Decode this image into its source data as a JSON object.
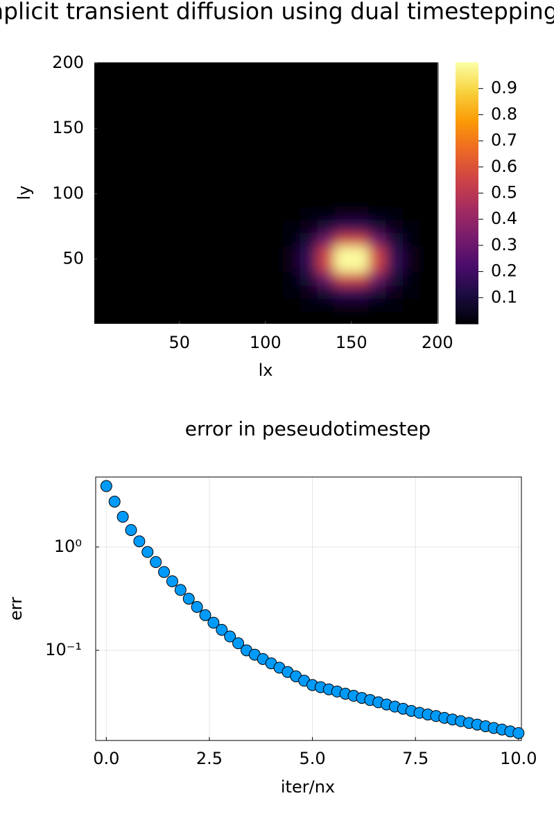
{
  "chart_data": [
    {
      "type": "heatmap",
      "title": "Implicit transient diffusion using dual timestepping",
      "xlabel": "lx",
      "ylabel": "ly",
      "x": [
        5,
        15,
        25,
        35,
        45,
        55,
        65,
        75,
        85,
        95,
        105,
        115,
        125,
        135,
        145,
        155,
        165,
        175,
        185,
        195
      ],
      "y": [
        5,
        15,
        25,
        35,
        45,
        55,
        65,
        75,
        85,
        95,
        105,
        115,
        125,
        135,
        145,
        155,
        165,
        175,
        185,
        195
      ],
      "z": [
        [
          0,
          0,
          0,
          0,
          0,
          0,
          0,
          0,
          0,
          0,
          0,
          0,
          0,
          0,
          0,
          0,
          0,
          0,
          0,
          0
        ],
        [
          0,
          0,
          0,
          0,
          0,
          0,
          0,
          0,
          0,
          0,
          0,
          0,
          0.005,
          0.016,
          0.029,
          0.029,
          0.016,
          0.005,
          0,
          0
        ],
        [
          0,
          0,
          0,
          0,
          0,
          0,
          0,
          0,
          0,
          0,
          0,
          0.005,
          0.028,
          0.093,
          0.168,
          0.168,
          0.093,
          0.028,
          0.005,
          0
        ],
        [
          0,
          0,
          0,
          0,
          0,
          0,
          0,
          0,
          0,
          0,
          0,
          0.016,
          0.093,
          0.304,
          0.549,
          0.549,
          0.304,
          0.093,
          0.016,
          0
        ],
        [
          0,
          0,
          0,
          0,
          0,
          0,
          0,
          0,
          0,
          0,
          0,
          0.029,
          0.168,
          0.549,
          0.993,
          0.993,
          0.549,
          0.168,
          0.029,
          0
        ],
        [
          0,
          0,
          0,
          0,
          0,
          0,
          0,
          0,
          0,
          0,
          0,
          0.029,
          0.168,
          0.549,
          0.993,
          0.993,
          0.549,
          0.168,
          0.029,
          0
        ],
        [
          0,
          0,
          0,
          0,
          0,
          0,
          0,
          0,
          0,
          0,
          0,
          0.016,
          0.093,
          0.304,
          0.549,
          0.549,
          0.304,
          0.093,
          0.016,
          0
        ],
        [
          0,
          0,
          0,
          0,
          0,
          0,
          0,
          0,
          0,
          0,
          0,
          0.005,
          0.028,
          0.093,
          0.168,
          0.168,
          0.093,
          0.028,
          0.005,
          0
        ],
        [
          0,
          0,
          0,
          0,
          0,
          0,
          0,
          0,
          0,
          0,
          0,
          0,
          0.005,
          0.016,
          0.029,
          0.029,
          0.016,
          0.005,
          0,
          0
        ],
        [
          0,
          0,
          0,
          0,
          0,
          0,
          0,
          0,
          0,
          0,
          0,
          0,
          0,
          0,
          0,
          0,
          0,
          0,
          0,
          0
        ],
        [
          0,
          0,
          0,
          0,
          0,
          0,
          0,
          0,
          0,
          0,
          0,
          0,
          0,
          0,
          0,
          0,
          0,
          0,
          0,
          0
        ],
        [
          0,
          0,
          0,
          0,
          0,
          0,
          0,
          0,
          0,
          0,
          0,
          0,
          0,
          0,
          0,
          0,
          0,
          0,
          0,
          0
        ],
        [
          0,
          0,
          0,
          0,
          0,
          0,
          0,
          0,
          0,
          0,
          0,
          0,
          0,
          0,
          0,
          0,
          0,
          0,
          0,
          0
        ],
        [
          0,
          0,
          0,
          0,
          0,
          0,
          0,
          0,
          0,
          0,
          0,
          0,
          0,
          0,
          0,
          0,
          0,
          0,
          0,
          0
        ],
        [
          0,
          0,
          0,
          0,
          0,
          0,
          0,
          0,
          0,
          0,
          0,
          0,
          0,
          0,
          0,
          0,
          0,
          0,
          0,
          0
        ],
        [
          0,
          0,
          0,
          0,
          0,
          0,
          0,
          0,
          0,
          0,
          0,
          0,
          0,
          0,
          0,
          0,
          0,
          0,
          0,
          0
        ],
        [
          0,
          0,
          0,
          0,
          0,
          0,
          0,
          0,
          0,
          0,
          0,
          0,
          0,
          0,
          0,
          0,
          0,
          0,
          0,
          0
        ],
        [
          0,
          0,
          0,
          0,
          0,
          0,
          0,
          0,
          0,
          0,
          0,
          0,
          0,
          0,
          0,
          0,
          0,
          0,
          0,
          0
        ],
        [
          0,
          0,
          0,
          0,
          0,
          0,
          0,
          0,
          0,
          0,
          0,
          0,
          0,
          0,
          0,
          0,
          0,
          0,
          0,
          0
        ],
        [
          0,
          0,
          0,
          0,
          0,
          0,
          0,
          0,
          0,
          0,
          0,
          0,
          0,
          0,
          0,
          0,
          0,
          0,
          0,
          0
        ]
      ],
      "xlim": [
        0.5,
        200.5
      ],
      "ylim": [
        0.5,
        200.5
      ],
      "xticks": [
        50,
        100,
        150,
        200
      ],
      "yticks": [
        50,
        100,
        150,
        200
      ],
      "zlim": [
        0,
        1
      ],
      "zticks": [
        0.1,
        0.2,
        0.3,
        0.4,
        0.5,
        0.6,
        0.7,
        0.8,
        0.9
      ],
      "colormap": [
        "#000004",
        "#1b0c41",
        "#4a0c6b",
        "#781c6d",
        "#a52c60",
        "#cf4446",
        "#ed6925",
        "#fb9b06",
        "#f7d13d",
        "#fcffa4"
      ],
      "grid": false
    },
    {
      "type": "scatter",
      "title": "error in peseudotimestep",
      "xlabel": "iter/nx",
      "ylabel": "err",
      "x": [
        0,
        0.2,
        0.4,
        0.6,
        0.8,
        1,
        1.2,
        1.4,
        1.6,
        1.8,
        2,
        2.2,
        2.4,
        2.6,
        2.8,
        3,
        3.2,
        3.4,
        3.6,
        3.8,
        4,
        4.2,
        4.4,
        4.6,
        4.8,
        5,
        5.2,
        5.4,
        5.6,
        5.8,
        6,
        6.2,
        6.4,
        6.6,
        6.8,
        7,
        7.2,
        7.4,
        7.6,
        7.8,
        8,
        8.2,
        8.4,
        8.6,
        8.8,
        9,
        9.2,
        9.4,
        9.6,
        9.8,
        10
      ],
      "values": [
        3.89,
        2.75,
        1.96,
        1.46,
        1.135,
        0.895,
        0.716,
        0.573,
        0.466,
        0.384,
        0.316,
        0.263,
        0.219,
        0.185,
        0.158,
        0.136,
        0.117,
        0.1,
        0.0908,
        0.0824,
        0.0748,
        0.0679,
        0.0617,
        0.056,
        0.0508,
        0.0461,
        0.044,
        0.0419,
        0.0399,
        0.038,
        0.0363,
        0.0346,
        0.033,
        0.0314,
        0.0299,
        0.0285,
        0.0272,
        0.0259,
        0.0248,
        0.0239,
        0.0231,
        0.0222,
        0.0214,
        0.0206,
        0.0198,
        0.0191,
        0.0184,
        0.0177,
        0.0171,
        0.0164,
        0.0158
      ],
      "color": "#009af9",
      "xlim": [
        -0.258,
        10.07
      ],
      "ylim": [
        0.0134,
        4.76
      ],
      "ylog": true,
      "xticks": [
        {
          "value": 0,
          "label": "0.0"
        },
        2.5,
        {
          "value": 5,
          "label": "5.0"
        },
        7.5,
        {
          "value": 10,
          "label": "10.0"
        }
      ],
      "yticks": [
        {
          "value": 1,
          "label": "10⁰"
        },
        {
          "value": 0.1,
          "label": "10⁻¹"
        }
      ],
      "grid": true
    }
  ]
}
